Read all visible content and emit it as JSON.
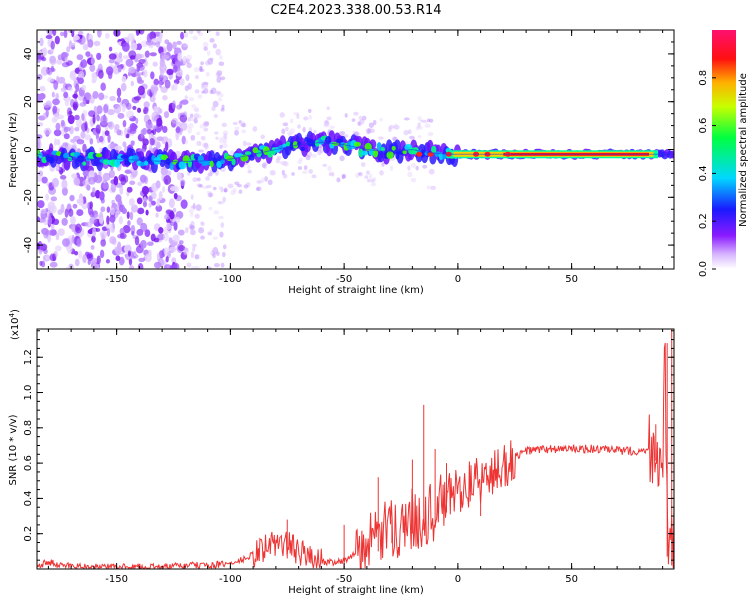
{
  "title": "C2E4.2023.338.00.53.R14",
  "colors": {
    "spec_line": "#1c3ce0",
    "snr_line": "#ee3333",
    "axis": "#000000"
  },
  "chart_data": [
    {
      "type": "heatmap",
      "name": "spectrogram",
      "xlabel": "Height of straight line (km)",
      "ylabel": "Frequency (Hz)",
      "xlim": [
        -185,
        95
      ],
      "ylim": [
        -50,
        50
      ],
      "xticks": [
        -150,
        -100,
        -50,
        0,
        50
      ],
      "xtick_labels": [
        "-150",
        "-100",
        "-50",
        "0",
        "50"
      ],
      "yticks": [
        -40,
        -20,
        0,
        20,
        40
      ],
      "ytick_labels": [
        "-40",
        "-20",
        "0",
        "20",
        "40"
      ],
      "ridge": {
        "x": [
          -185,
          -170,
          -150,
          -130,
          -115,
          -100,
          -90,
          -80,
          -70,
          -60,
          -50,
          -40,
          -30,
          -20,
          -15,
          -5,
          0,
          20,
          50,
          80,
          95
        ],
        "y": [
          -2,
          -4,
          -4,
          -5,
          -5,
          -4,
          -2,
          0,
          2,
          3,
          2,
          0,
          -1,
          0,
          -1,
          -2,
          -2,
          -2,
          -2,
          -2,
          -2
        ]
      },
      "colorbar": {
        "label": "Normalized spectral amplitude",
        "range": [
          0,
          1
        ],
        "ticks": [
          0.0,
          0.2,
          0.4,
          0.6,
          0.8
        ],
        "tick_labels": [
          "0.0",
          "0.2",
          "0.4",
          "0.6",
          "0.8"
        ]
      }
    },
    {
      "type": "line",
      "name": "snr",
      "xlabel": "Height of straight line (km)",
      "ylabel": "SNR (10 * v/v)",
      "scale_label": "(x10",
      "scale_exp": "4",
      "xlim": [
        -185,
        95
      ],
      "ylim": [
        0,
        1.36
      ],
      "xticks": [
        -150,
        -100,
        -50,
        0,
        50
      ],
      "xtick_labels": [
        "-150",
        "-100",
        "-50",
        "0",
        "50"
      ],
      "yticks": [
        0.2,
        0.4,
        0.6,
        0.8,
        1.0,
        1.2
      ],
      "ytick_labels": [
        "0.2",
        "0.4",
        "0.6",
        "0.8",
        "1.0",
        "1.2"
      ],
      "x": [
        -185,
        -180,
        -175,
        -170,
        -160,
        -150,
        -140,
        -130,
        -120,
        -110,
        -100,
        -95,
        -90,
        -85,
        -80,
        -75,
        -70,
        -65,
        -60,
        -55,
        -50,
        -45,
        -40,
        -35,
        -30,
        -25,
        -20,
        -15,
        -10,
        -5,
        0,
        5,
        10,
        15,
        20,
        25,
        30,
        40,
        50,
        60,
        70,
        80,
        85,
        88,
        90,
        91,
        92,
        93,
        95
      ],
      "y": [
        0.02,
        0.04,
        0.02,
        0.02,
        0.01,
        0.01,
        0.01,
        0.01,
        0.02,
        0.02,
        0.03,
        0.05,
        0.08,
        0.12,
        0.15,
        0.14,
        0.1,
        0.06,
        0.04,
        0.04,
        0.05,
        0.08,
        0.12,
        0.18,
        0.22,
        0.25,
        0.28,
        0.3,
        0.32,
        0.4,
        0.45,
        0.48,
        0.5,
        0.53,
        0.58,
        0.63,
        0.67,
        0.68,
        0.68,
        0.68,
        0.67,
        0.67,
        0.68,
        0.7,
        0.65,
        1.25,
        0.15,
        0.08,
        0.12
      ],
      "spikes": [
        {
          "x": -75,
          "y": 0.28
        },
        {
          "x": -50,
          "y": 0.25
        },
        {
          "x": -35,
          "y": 0.52
        },
        {
          "x": -29,
          "y": 0.28
        },
        {
          "x": -20,
          "y": 0.62
        },
        {
          "x": -15,
          "y": 0.93
        },
        {
          "x": -10,
          "y": 0.68
        },
        {
          "x": -5,
          "y": 0.6
        },
        {
          "x": 10,
          "y": 0.3
        },
        {
          "x": 87,
          "y": 0.82
        },
        {
          "x": 92,
          "y": 1.28
        },
        {
          "x": 94,
          "y": 1.36
        }
      ]
    }
  ]
}
